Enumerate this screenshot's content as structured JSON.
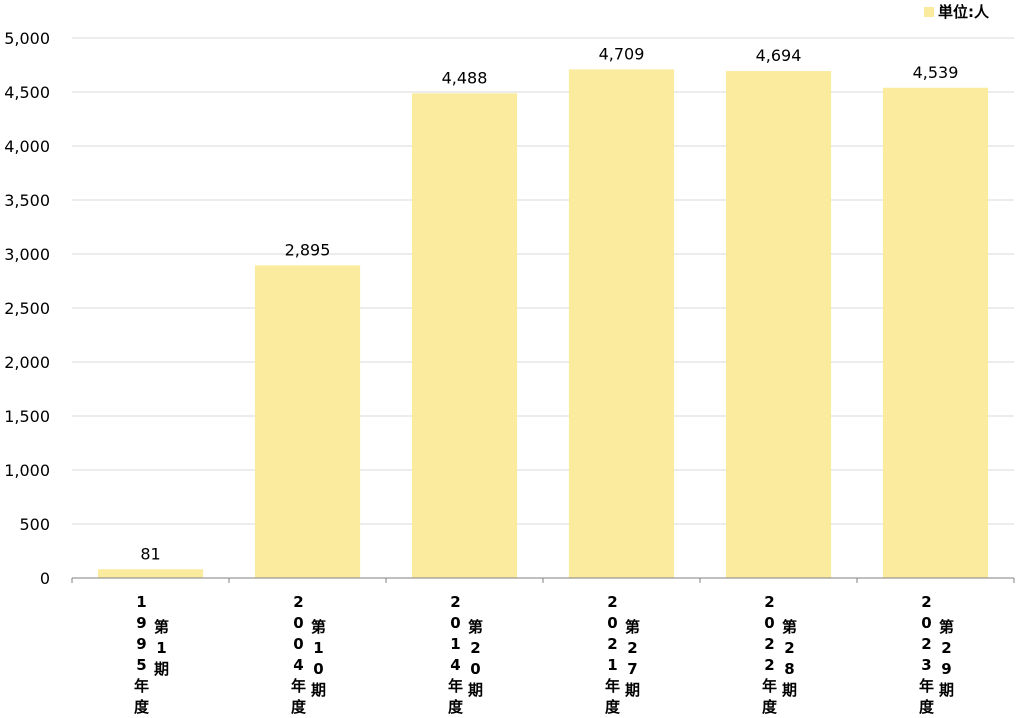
{
  "chart_data": {
    "type": "bar",
    "categories": [
      {
        "period": "第1期",
        "year": "1995年度"
      },
      {
        "period": "第10期",
        "year": "2004年度"
      },
      {
        "period": "第20期",
        "year": "2014年度"
      },
      {
        "period": "第27期",
        "year": "2021年度"
      },
      {
        "period": "第28期",
        "year": "2022年度"
      },
      {
        "period": "第29期",
        "year": "2023年度"
      }
    ],
    "values": [
      81,
      2895,
      4488,
      4709,
      4694,
      4539
    ],
    "data_labels": [
      "81",
      "2,895",
      "4,488",
      "4,709",
      "4,694",
      "4,539"
    ],
    "title": "",
    "xlabel": "",
    "ylabel": "",
    "ylim": [
      0,
      5000
    ],
    "yticks": [
      0,
      500,
      1000,
      1500,
      2000,
      2500,
      3000,
      3500,
      4000,
      4500,
      5000
    ],
    "ytick_labels": [
      "0",
      "500",
      "1,000",
      "1,500",
      "2,000",
      "2,500",
      "3,000",
      "3,500",
      "4,000",
      "4,500",
      "5,000"
    ],
    "grid": true,
    "legend": {
      "text": "単位:人",
      "placement": "top-right"
    },
    "colors": {
      "bar": "#FAEB9F",
      "grid": "#D9D9D9",
      "axis": "#808080",
      "text": "#000000"
    }
  }
}
